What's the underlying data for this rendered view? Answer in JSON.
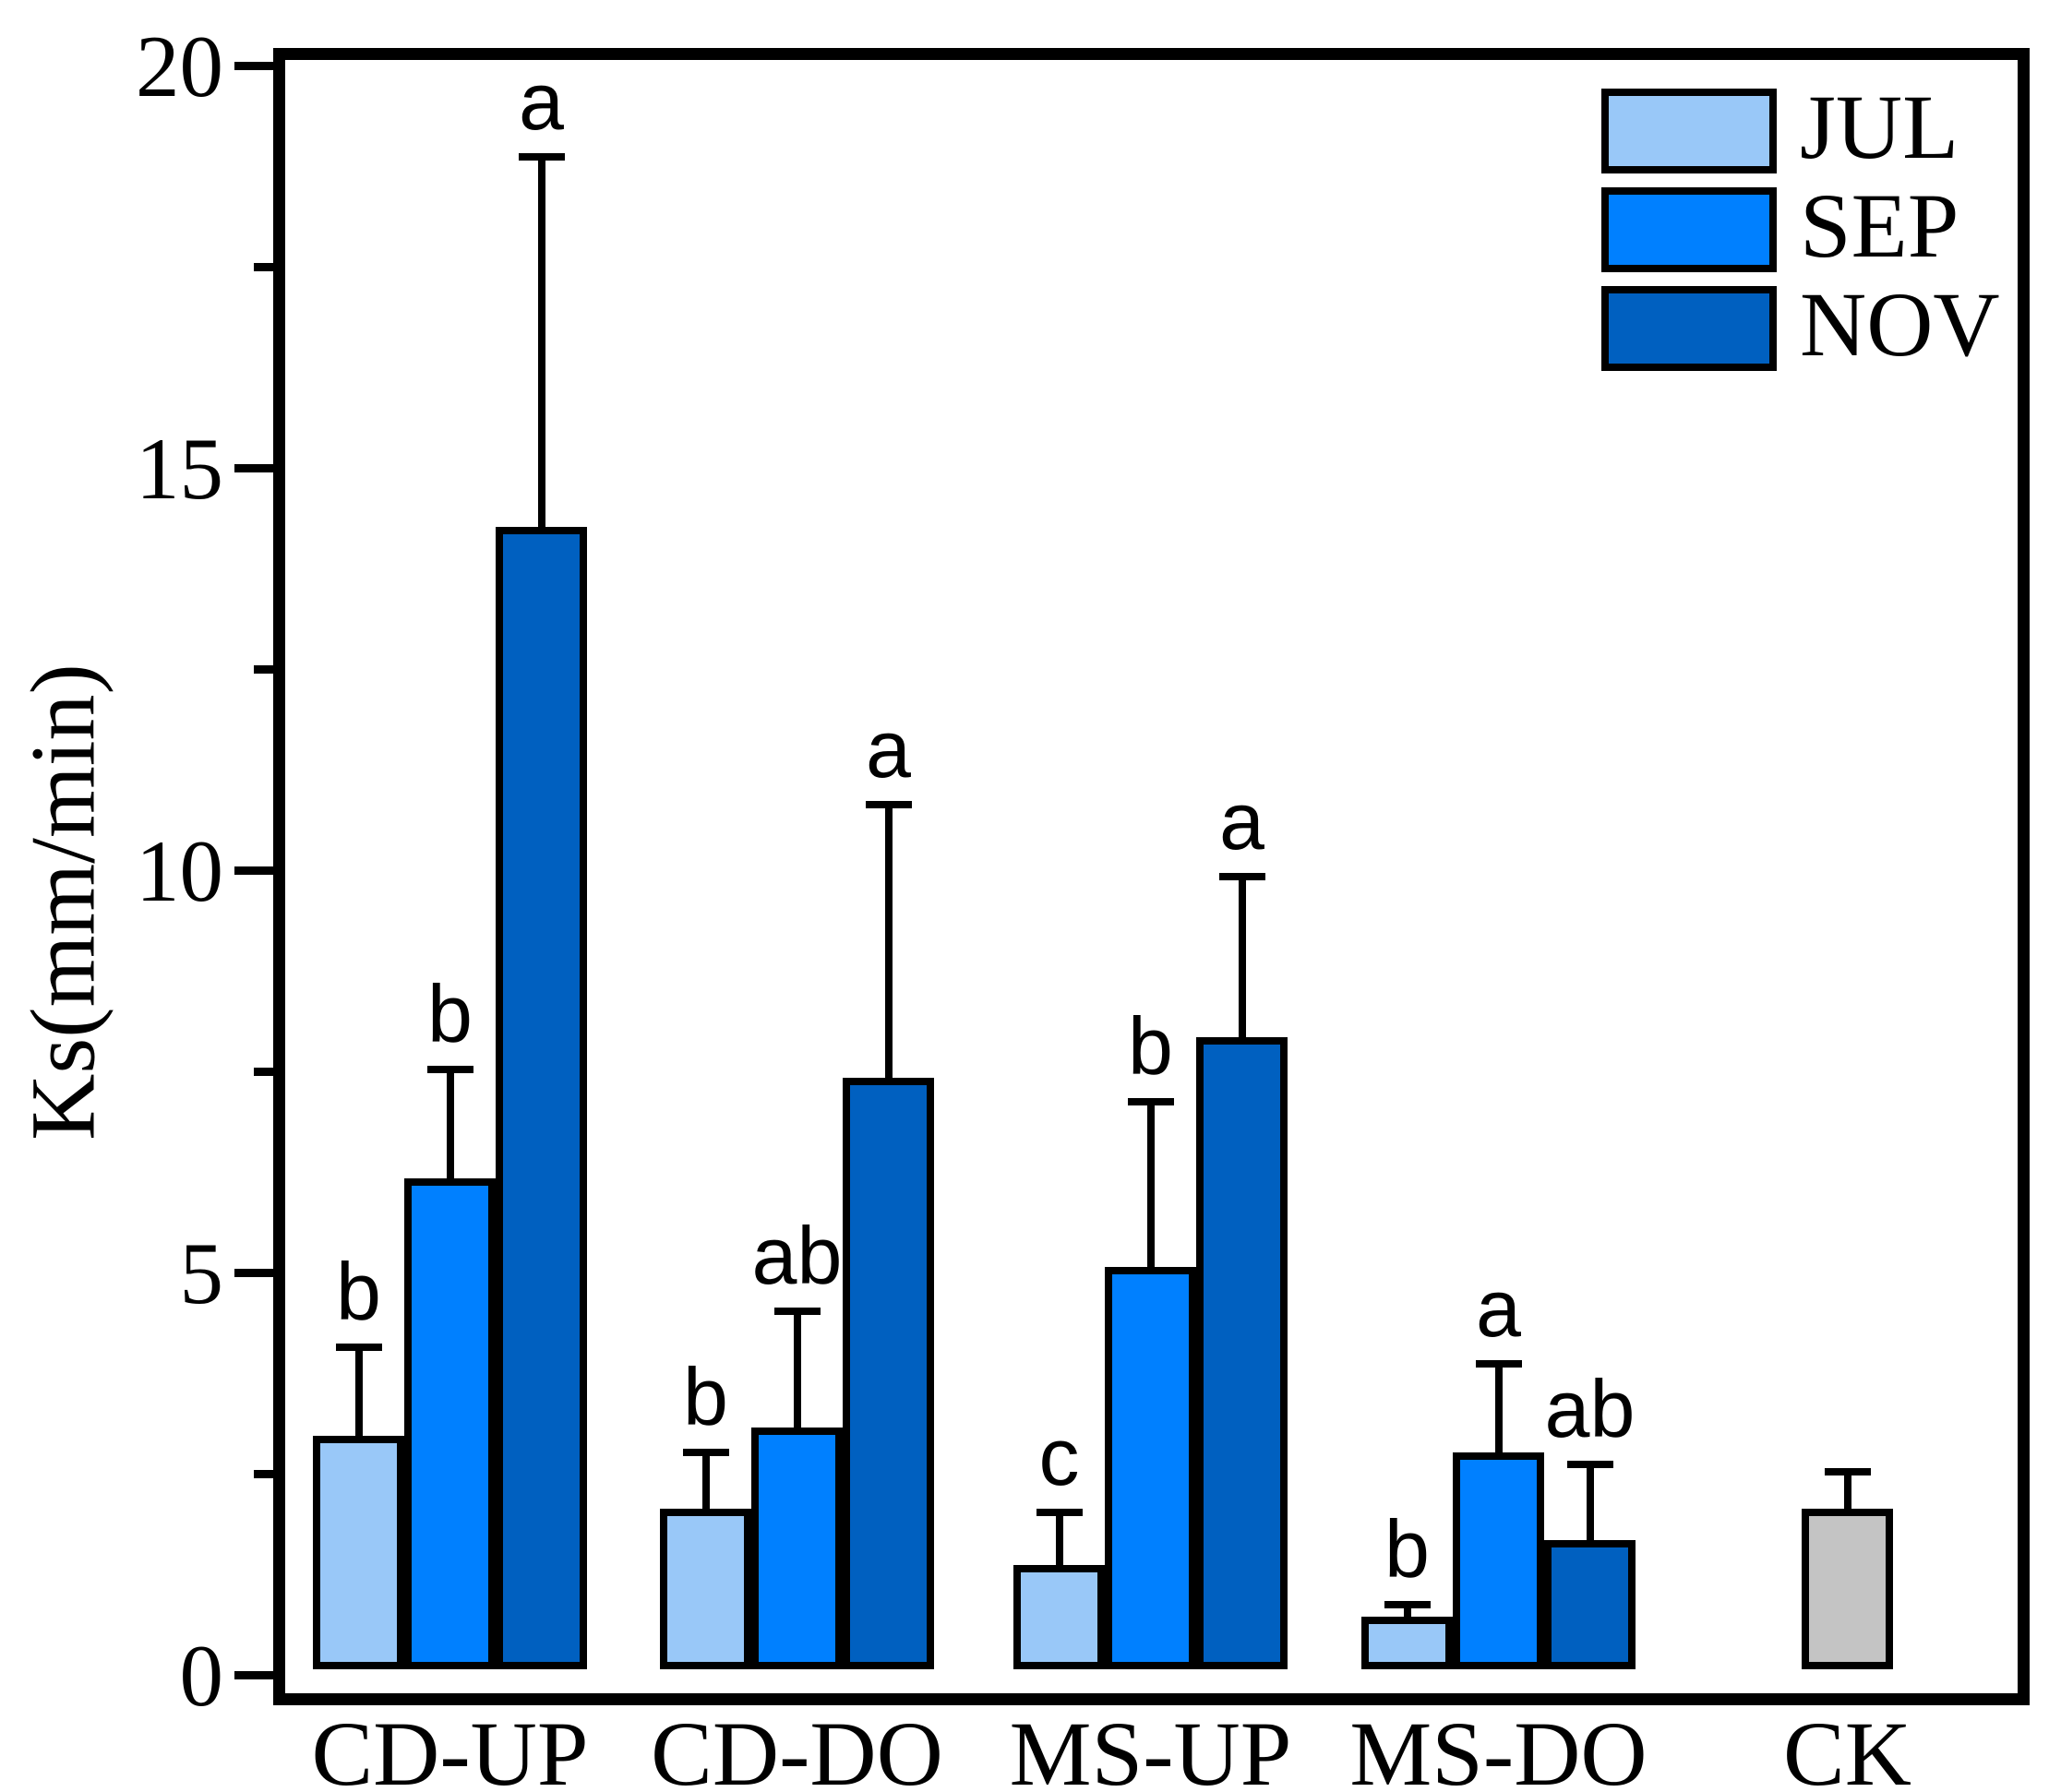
{
  "chart_data": {
    "type": "bar",
    "title": "",
    "xlabel": "",
    "ylabel": "Ks(mm/min)",
    "ylim": [
      0,
      20
    ],
    "yticks_major": [
      0,
      5,
      10,
      15,
      20
    ],
    "ytick_labels": [
      "0",
      "5",
      "10",
      "15",
      "20"
    ],
    "yticks_minor": [
      2.5,
      7.5,
      12.5,
      17.5
    ],
    "grid": false,
    "legend_position": "top-right-inside",
    "categories": [
      "CD-UP",
      "CD-DO",
      "MS-UP",
      "MS-DO"
    ],
    "series": [
      {
        "name": "JUL",
        "color": "#99C8F8",
        "values": [
          2.9,
          2.0,
          1.3,
          0.65
        ],
        "upper_errors": [
          1.1,
          0.7,
          0.65,
          0.15
        ],
        "sig_letters": [
          "b",
          "b",
          "c",
          "b"
        ]
      },
      {
        "name": "SEP",
        "color": "#0080FF",
        "values": [
          6.1,
          3.0,
          5.0,
          2.7
        ],
        "upper_errors": [
          1.35,
          1.45,
          2.05,
          1.1
        ],
        "sig_letters": [
          "b",
          "ab",
          "b",
          "a"
        ]
      },
      {
        "name": "NOV",
        "color": "#0060C0",
        "values": [
          14.2,
          7.35,
          7.85,
          1.6
        ],
        "upper_errors": [
          4.6,
          3.4,
          2.0,
          0.95
        ],
        "sig_letters": [
          "a",
          "a",
          "a",
          "ab"
        ]
      }
    ],
    "control": {
      "name": "CK",
      "color": "#C4C4C4",
      "value": 2.0,
      "upper_error": 0.45,
      "sig_letter": ""
    },
    "axis_color": "#000000"
  }
}
